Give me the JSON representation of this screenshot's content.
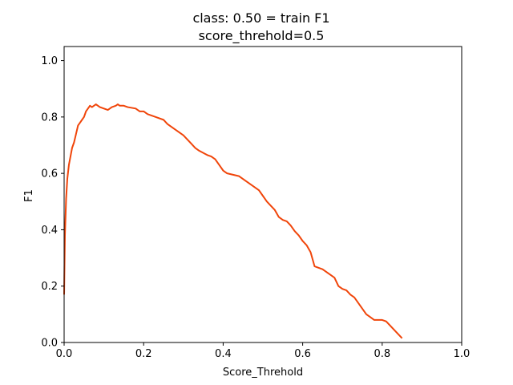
{
  "chart_data": {
    "type": "line",
    "title": "class: 0.50 = train F1",
    "subtitle": "score_threhold=0.5",
    "xlabel": "Score_Threhold",
    "ylabel": "F1",
    "xlim": [
      0.0,
      1.0
    ],
    "ylim": [
      0.0,
      1.05
    ],
    "xticks": [
      "0.0",
      "0.2",
      "0.4",
      "0.6",
      "0.8",
      "1.0"
    ],
    "yticks": [
      "0.0",
      "0.2",
      "0.4",
      "0.6",
      "0.8",
      "1.0"
    ],
    "grid": false,
    "legend": "none",
    "series_color": "#f0450a",
    "series": [
      {
        "x": [
          0.0,
          0.002,
          0.005,
          0.008,
          0.012,
          0.016,
          0.02,
          0.025,
          0.03,
          0.035,
          0.04,
          0.045,
          0.05,
          0.055,
          0.06,
          0.065,
          0.07,
          0.075,
          0.08,
          0.085,
          0.09,
          0.1,
          0.11,
          0.12,
          0.13,
          0.135,
          0.14,
          0.15,
          0.16,
          0.18,
          0.19,
          0.2,
          0.21,
          0.22,
          0.23,
          0.25,
          0.26,
          0.27,
          0.28,
          0.3,
          0.31,
          0.32,
          0.33,
          0.34,
          0.36,
          0.37,
          0.38,
          0.39,
          0.4,
          0.41,
          0.44,
          0.45,
          0.46,
          0.48,
          0.49,
          0.5,
          0.51,
          0.52,
          0.53,
          0.54,
          0.55,
          0.56,
          0.57,
          0.58,
          0.59,
          0.6,
          0.61,
          0.62,
          0.63,
          0.65,
          0.66,
          0.67,
          0.68,
          0.69,
          0.7,
          0.71,
          0.72,
          0.73,
          0.74,
          0.75,
          0.76,
          0.77,
          0.78,
          0.79,
          0.8,
          0.81,
          0.82,
          0.83,
          0.84,
          0.85
        ],
        "y": [
          0.17,
          0.38,
          0.51,
          0.58,
          0.63,
          0.66,
          0.69,
          0.71,
          0.74,
          0.77,
          0.78,
          0.79,
          0.8,
          0.82,
          0.83,
          0.84,
          0.835,
          0.84,
          0.845,
          0.84,
          0.835,
          0.83,
          0.825,
          0.835,
          0.84,
          0.845,
          0.84,
          0.84,
          0.835,
          0.83,
          0.82,
          0.82,
          0.81,
          0.805,
          0.8,
          0.79,
          0.775,
          0.765,
          0.755,
          0.735,
          0.72,
          0.705,
          0.69,
          0.68,
          0.665,
          0.66,
          0.65,
          0.63,
          0.61,
          0.6,
          0.59,
          0.58,
          0.57,
          0.55,
          0.54,
          0.52,
          0.5,
          0.485,
          0.47,
          0.445,
          0.435,
          0.43,
          0.415,
          0.395,
          0.38,
          0.36,
          0.345,
          0.32,
          0.27,
          0.26,
          0.25,
          0.24,
          0.23,
          0.2,
          0.19,
          0.185,
          0.17,
          0.16,
          0.14,
          0.12,
          0.1,
          0.09,
          0.08,
          0.08,
          0.08,
          0.075,
          0.06,
          0.045,
          0.03,
          0.015
        ]
      }
    ]
  }
}
